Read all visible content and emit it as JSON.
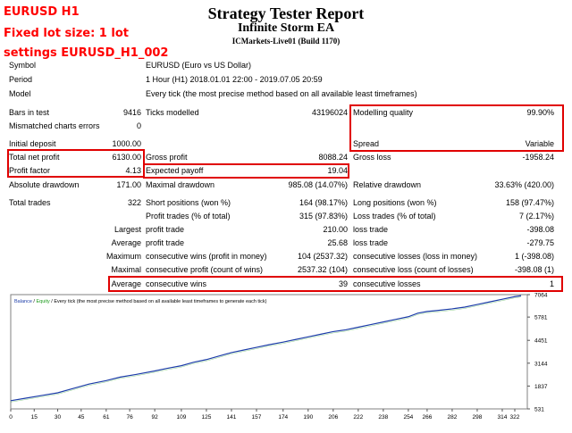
{
  "annotations": {
    "pair": "EURUSD H1",
    "lot": "Fixed lot size: 1 lot",
    "settings": "settings EURUSD_H1_002"
  },
  "header": {
    "title": "Strategy Tester Report",
    "ea_name": "Infinite Storm EA",
    "server": "ICMarkets-Live01 (Build 1170)"
  },
  "info": {
    "symbol_label": "Symbol",
    "symbol_value": "EURUSD (Euro vs US Dollar)",
    "period_label": "Period",
    "period_value": "1 Hour (H1) 2018.01.01 22:00 - 2019.07.05 20:59",
    "model_label": "Model",
    "model_value": "Every tick (the most precise method based on all available least timeframes)"
  },
  "stats": {
    "bars_label": "Bars in test",
    "bars_value": "9416",
    "ticks_label": "Ticks modelled",
    "ticks_value": "43196024",
    "quality_label": "Modelling quality",
    "quality_value": "99.90%",
    "mismatch_label": "Mismatched charts errors",
    "mismatch_value": "0",
    "deposit_label": "Initial deposit",
    "deposit_value": "1000.00",
    "spread_label": "Spread",
    "spread_value": "Variable",
    "net_label": "Total net profit",
    "net_value": "6130.00",
    "gross_profit_label": "Gross profit",
    "gross_profit_value": "8088.24",
    "gross_loss_label": "Gross loss",
    "gross_loss_value": "-1958.24",
    "pf_label": "Profit factor",
    "pf_value": "4.13",
    "payoff_label": "Expected payoff",
    "payoff_value": "19.04",
    "abs_dd_label": "Absolute drawdown",
    "abs_dd_value": "171.00",
    "max_dd_label": "Maximal drawdown",
    "max_dd_value": "985.08 (14.07%)",
    "rel_dd_label": "Relative drawdown",
    "rel_dd_value": "33.63% (420.00)",
    "trades_label": "Total trades",
    "trades_value": "322",
    "short_label": "Short positions (won %)",
    "short_value": "164 (98.17%)",
    "long_label": "Long positions (won %)",
    "long_value": "158 (97.47%)",
    "ptrades_label": "Profit trades (% of total)",
    "ptrades_value": "315 (97.83%)",
    "ltrades_label": "Loss trades (% of total)",
    "ltrades_value": "7 (2.17%)",
    "largest_label": "Largest",
    "lp_label": "profit trade",
    "lp_value": "210.00",
    "ll_label": "loss trade",
    "ll_value": "-398.08",
    "average_label": "Average",
    "ap_label": "profit trade",
    "ap_value": "25.68",
    "al_label": "loss trade",
    "al_value": "-279.75",
    "maximum_label": "Maximum",
    "mcw_label": "consecutive wins (profit in money)",
    "mcw_value": "104 (2537.32)",
    "mcl_label": "consecutive losses (loss in money)",
    "mcl_value": "1 (-398.08)",
    "maximal_label": "Maximal",
    "mcp_label": "consecutive profit (count of wins)",
    "mcp_value": "2537.32 (104)",
    "mclc_label": "consecutive loss (count of losses)",
    "mclc_value": "-398.08 (1)",
    "average2_label": "Average",
    "acw_label": "consecutive wins",
    "acw_value": "39",
    "acl_label": "consecutive losses",
    "acl_value": "1"
  },
  "chart_data": {
    "type": "line",
    "legend": [
      "Balance",
      "Equity"
    ],
    "caption": "/ Every tick (the most precise method based on all available least timeframes to generate each tick)",
    "xlabels": [
      "0",
      "15",
      "30",
      "45",
      "61",
      "76",
      "92",
      "109",
      "125",
      "141",
      "157",
      "174",
      "190",
      "206",
      "222",
      "238",
      "254",
      "266",
      "282",
      "298",
      "314",
      "322"
    ],
    "x_ticks": [
      0,
      15,
      30,
      45,
      61,
      76,
      92,
      109,
      125,
      141,
      157,
      174,
      190,
      206,
      222,
      238,
      254,
      266,
      282,
      298,
      314,
      322
    ],
    "ylabels": [
      "7064",
      "5781",
      "4451",
      "3144",
      "1837",
      "531"
    ],
    "ylim": [
      531,
      7064
    ],
    "xlim": [
      0,
      330
    ],
    "x": [
      0,
      10,
      20,
      30,
      40,
      50,
      61,
      70,
      80,
      92,
      100,
      109,
      117,
      125,
      133,
      141,
      149,
      157,
      165,
      174,
      182,
      190,
      198,
      206,
      214,
      222,
      230,
      238,
      246,
      254,
      260,
      266,
      272,
      282,
      290,
      298,
      306,
      314,
      322,
      326
    ],
    "y": [
      1000,
      1150,
      1300,
      1450,
      1700,
      1950,
      2150,
      2350,
      2500,
      2700,
      2850,
      3000,
      3200,
      3350,
      3550,
      3750,
      3900,
      4050,
      4200,
      4350,
      4500,
      4650,
      4800,
      4950,
      5050,
      5200,
      5350,
      5500,
      5650,
      5800,
      6000,
      6100,
      6150,
      6250,
      6350,
      6500,
      6650,
      6800,
      6950,
      7000
    ],
    "colors": {
      "balance": "#1c3ca8",
      "equity": "#1a9a1a",
      "caption": "#000000"
    }
  }
}
